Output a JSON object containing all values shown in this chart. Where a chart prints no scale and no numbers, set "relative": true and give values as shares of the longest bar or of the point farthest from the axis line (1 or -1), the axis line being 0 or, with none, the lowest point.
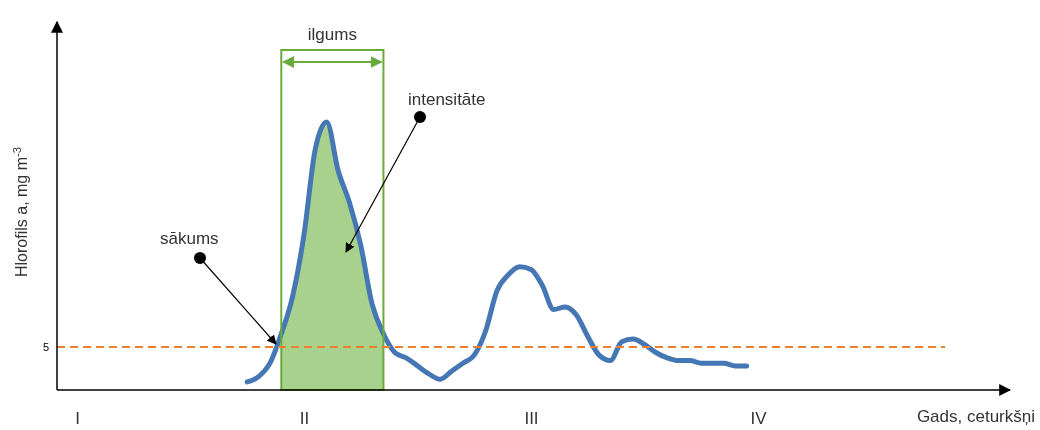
{
  "chart_data": {
    "type": "line",
    "relative": true,
    "xlabel": "Gads, ceturkšņi",
    "ylabel": "Hlorofils a, mg m$^{-3}$",
    "categories": [
      "I",
      null,
      null,
      null,
      null,
      null,
      null,
      null,
      null,
      null,
      null,
      null,
      null,
      null,
      null,
      null,
      null,
      null,
      null,
      null,
      "II",
      null,
      null,
      null,
      null,
      null,
      null,
      null,
      null,
      null,
      null,
      null,
      null,
      null,
      null,
      null,
      null,
      null,
      null,
      null,
      "III",
      null,
      null,
      null,
      null,
      null,
      null,
      null,
      null,
      null,
      null,
      null,
      null,
      null,
      null,
      null,
      null,
      null,
      null,
      null,
      "IV",
      null,
      null,
      null,
      null,
      null,
      null,
      null,
      null,
      null,
      null,
      null,
      null,
      null,
      null,
      null,
      null,
      null,
      null,
      null,
      null,
      null
    ],
    "series": [
      {
        "type": "area",
        "color": "#a9d18e",
        "values": [
          null,
          null,
          null,
          null,
          null,
          null,
          null,
          null,
          null,
          null,
          null,
          null,
          null,
          null,
          null,
          null,
          null,
          null,
          0.21,
          0.35,
          0.58,
          0.9,
          1,
          0.82,
          0.7,
          0.54,
          0.32,
          0.21,
          null,
          null,
          null,
          null,
          null,
          null,
          null,
          null,
          null,
          null,
          null,
          null,
          null,
          null,
          null,
          null,
          null,
          null,
          null,
          null,
          null,
          null,
          null,
          null,
          null,
          null,
          null,
          null,
          null,
          null,
          null,
          null,
          null,
          null,
          null,
          null,
          null,
          null,
          null,
          null,
          null,
          null,
          null,
          null,
          null,
          null,
          null,
          null,
          null,
          null,
          null,
          null,
          null,
          null
        ]
      },
      {
        "color": "#4577b5",
        "values": [
          null,
          null,
          null,
          null,
          null,
          null,
          null,
          null,
          null,
          null,
          null,
          null,
          null,
          null,
          null,
          0.03,
          0.05,
          0.1,
          0.21,
          0.35,
          0.58,
          0.9,
          1,
          0.82,
          0.7,
          0.54,
          0.32,
          0.21,
          0.14,
          0.12,
          0.09,
          0.06,
          0.04,
          0.07,
          0.1,
          0.13,
          0.22,
          0.37,
          0.43,
          0.46,
          0.45,
          0.39,
          0.3,
          0.31,
          0.28,
          0.2,
          0.13,
          0.11,
          0.18,
          0.19,
          0.17,
          0.14,
          0.12,
          0.11,
          0.11,
          0.1,
          0.1,
          0.1,
          0.09,
          0.09,
          null,
          null,
          null,
          null,
          null,
          null,
          null,
          null,
          null,
          null,
          null,
          null,
          null,
          null,
          null,
          null,
          null,
          null,
          null,
          null,
          null,
          null
        ]
      }
    ],
    "ref_lines": [
      {
        "axis": "y",
        "value": 0.16,
        "color": "#f08030",
        "line_style": "dashed"
      }
    ],
    "annotations": [
      "5",
      "ilgums",
      "intensitāte",
      "sākums"
    ]
  }
}
